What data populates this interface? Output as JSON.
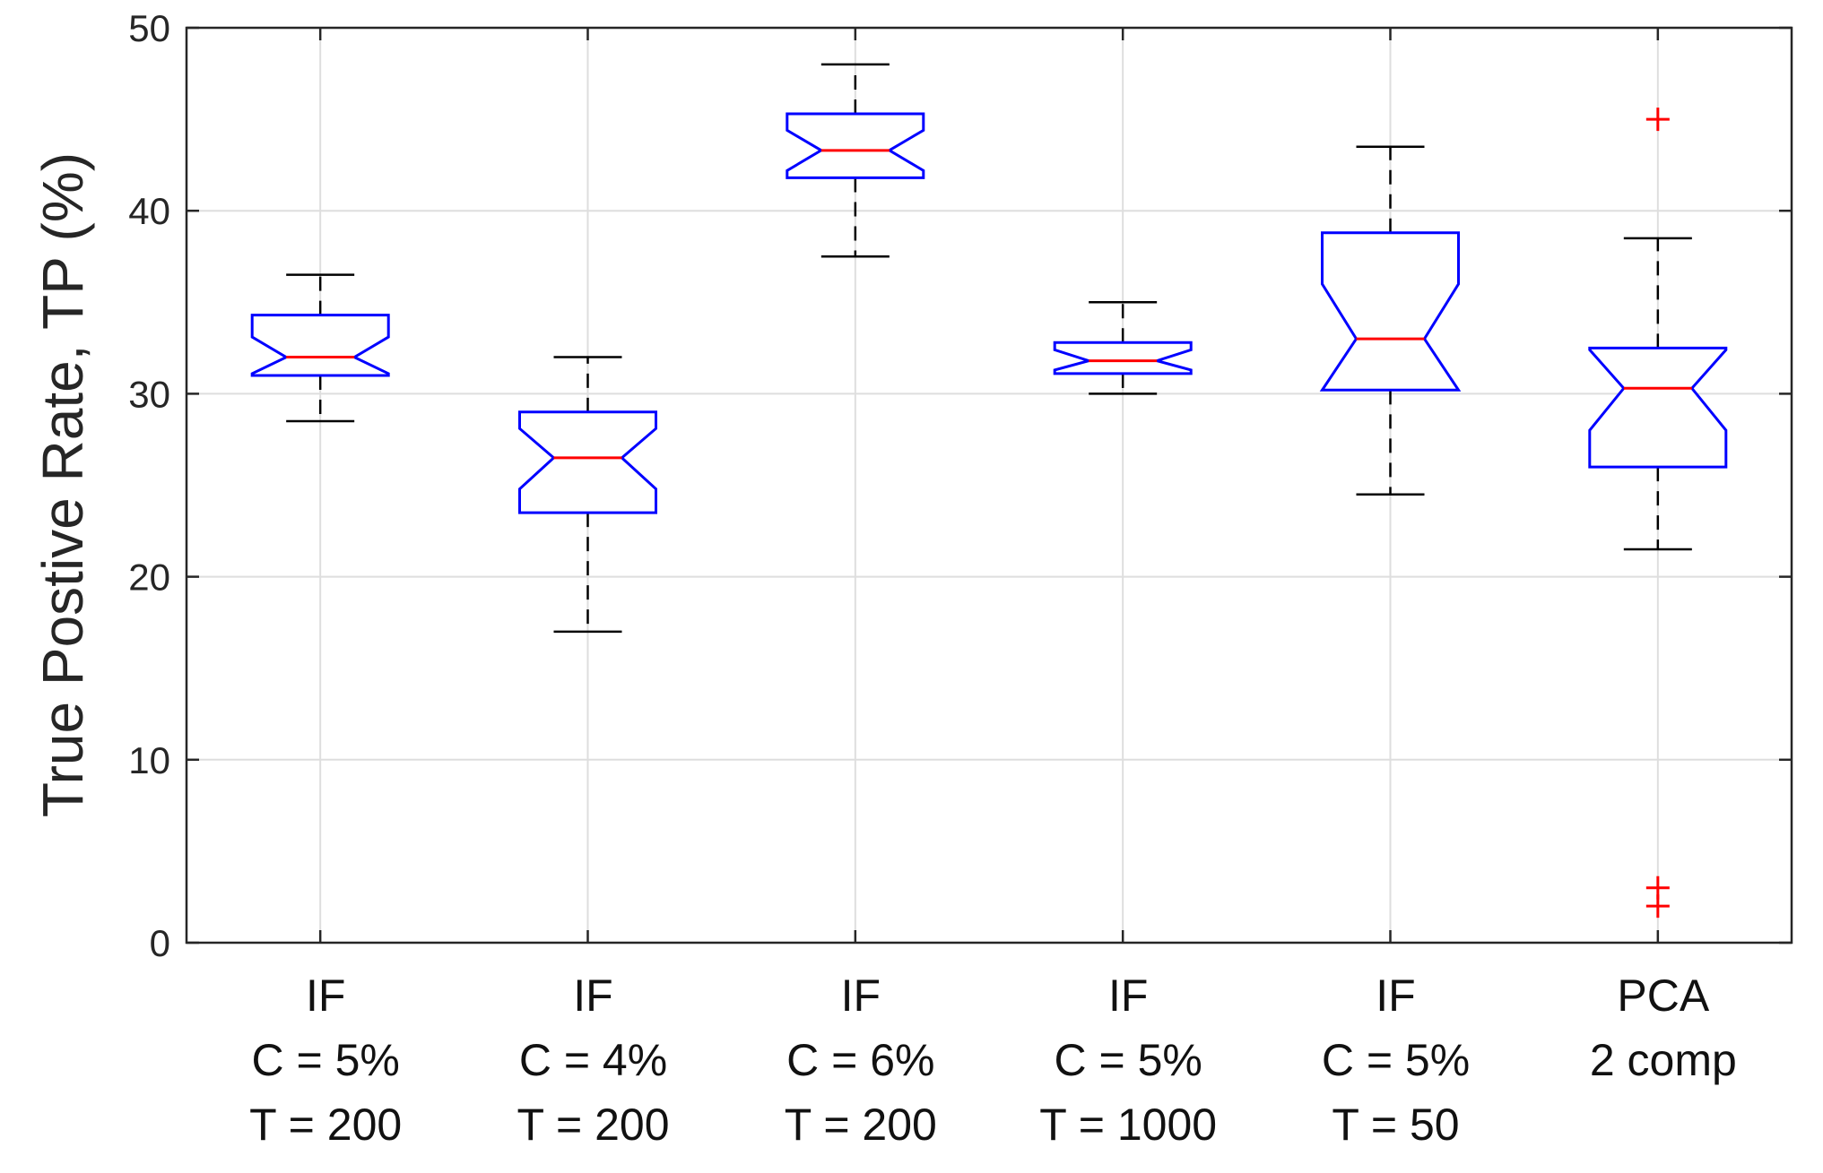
{
  "chart_data": {
    "type": "box",
    "title": "",
    "xlabel": "",
    "ylabel": "True Postive Rate,  TP (%)",
    "ylim": [
      0,
      50
    ],
    "yticks": [
      0,
      10,
      20,
      30,
      40,
      50
    ],
    "grid": true,
    "notched": true,
    "colors": {
      "box": "#0000ff",
      "median": "#ff0000",
      "whisker": "#000000",
      "outlier": "#ff0000",
      "grid": "#dedede",
      "axis": "#262626"
    },
    "categories": [
      [
        "IF",
        "C = 5%",
        "T = 200"
      ],
      [
        "IF",
        "C = 4%",
        "T = 200"
      ],
      [
        "IF",
        "C = 6%",
        "T = 200"
      ],
      [
        "IF",
        "C = 5%",
        "T = 1000"
      ],
      [
        "IF",
        "C = 5%",
        "T = 50"
      ],
      [
        "PCA",
        "2 comp"
      ]
    ],
    "boxes": [
      {
        "whisker_low": 28.5,
        "q1": 31.0,
        "notch_low": 31.1,
        "median": 32.0,
        "notch_high": 33.1,
        "q3": 34.3,
        "whisker_high": 36.5,
        "outliers": []
      },
      {
        "whisker_low": 17.0,
        "q1": 23.5,
        "notch_low": 24.8,
        "median": 26.5,
        "notch_high": 28.1,
        "q3": 29.0,
        "whisker_high": 32.0,
        "outliers": []
      },
      {
        "whisker_low": 37.5,
        "q1": 41.8,
        "notch_low": 42.2,
        "median": 43.3,
        "notch_high": 44.4,
        "q3": 45.3,
        "whisker_high": 48.0,
        "outliers": []
      },
      {
        "whisker_low": 30.0,
        "q1": 31.1,
        "notch_low": 31.3,
        "median": 31.8,
        "notch_high": 32.4,
        "q3": 32.8,
        "whisker_high": 35.0,
        "outliers": []
      },
      {
        "whisker_low": 24.5,
        "q1": 30.2,
        "notch_low": 30.2,
        "median": 33.0,
        "notch_high": 36.0,
        "q3": 38.8,
        "whisker_high": 43.5,
        "outliers": []
      },
      {
        "whisker_low": 21.5,
        "q1": 26.0,
        "notch_low": 28.0,
        "median": 30.3,
        "notch_high": 32.4,
        "q3": 32.5,
        "whisker_high": 38.5,
        "outliers": [
          45.0,
          3.0,
          2.0
        ]
      }
    ]
  }
}
